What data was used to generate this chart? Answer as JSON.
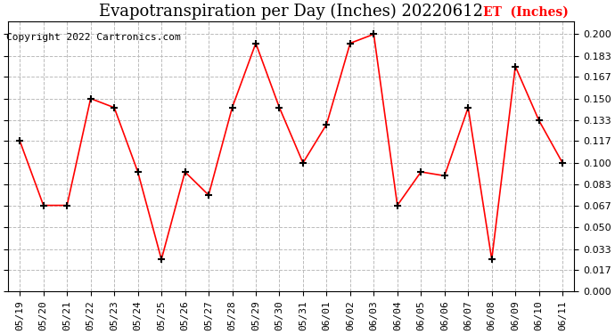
{
  "title": "Evapotranspiration per Day (Inches) 20220612",
  "copyright": "Copyright 2022 Cartronics.com",
  "legend_label": "ET  (Inches)",
  "dates": [
    "05/19",
    "05/20",
    "05/21",
    "05/22",
    "05/23",
    "05/24",
    "05/25",
    "05/26",
    "05/27",
    "05/28",
    "05/29",
    "05/30",
    "05/31",
    "06/01",
    "06/02",
    "06/03",
    "06/04",
    "06/05",
    "06/06",
    "06/07",
    "06/08",
    "06/09",
    "06/10",
    "06/11"
  ],
  "values": [
    0.117,
    0.067,
    0.067,
    0.15,
    0.143,
    0.093,
    0.025,
    0.093,
    0.075,
    0.143,
    0.193,
    0.143,
    0.1,
    0.13,
    0.193,
    0.2,
    0.067,
    0.093,
    0.09,
    0.143,
    0.025,
    0.175,
    0.133,
    0.1
  ],
  "ylim": [
    0.0,
    0.21
  ],
  "yticks": [
    0.0,
    0.017,
    0.033,
    0.05,
    0.067,
    0.083,
    0.1,
    0.117,
    0.133,
    0.15,
    0.167,
    0.183,
    0.2
  ],
  "line_color": "red",
  "marker": "+",
  "marker_color": "black",
  "grid_color": "#bbbbbb",
  "bg_color": "white",
  "title_fontsize": 13,
  "copyright_fontsize": 8,
  "legend_color": "red",
  "legend_fontsize": 10,
  "tick_fontsize": 8
}
